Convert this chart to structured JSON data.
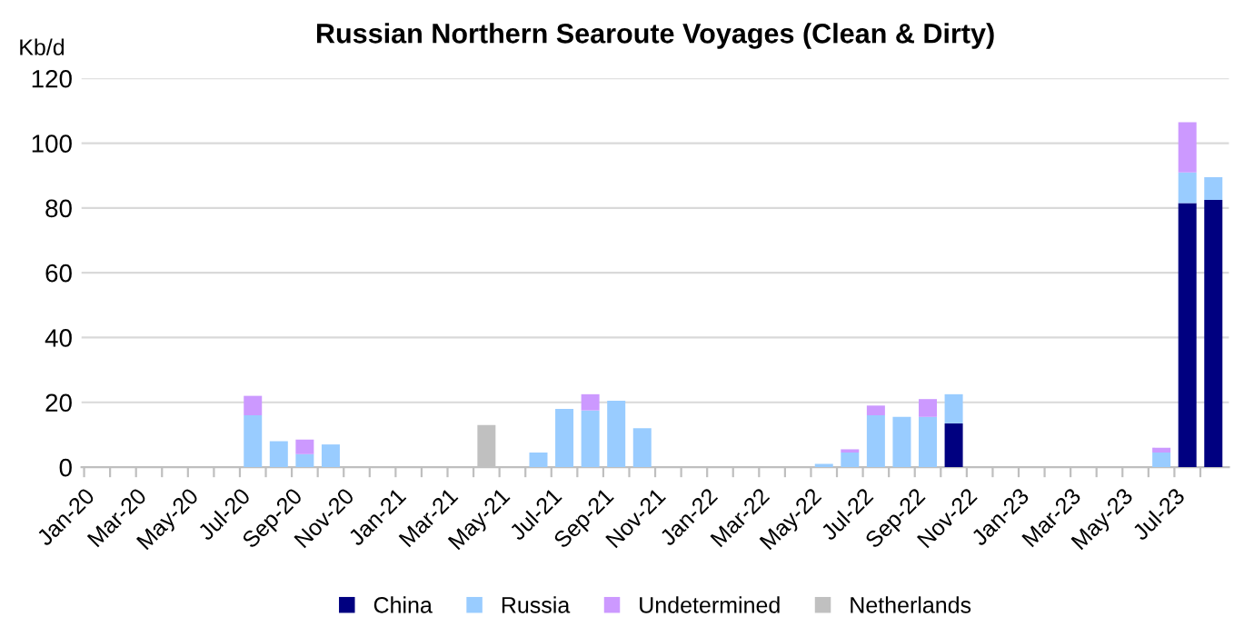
{
  "chart_data": {
    "type": "bar",
    "title": "Russian Northern Searoute Voyages (Clean & Dirty)",
    "ylabel": "Kb/d",
    "stacked": true,
    "categories": [
      "Jan-20",
      null,
      "Mar-20",
      null,
      "May-20",
      null,
      "Jul-20",
      null,
      "Sep-20",
      null,
      "Nov-20",
      null,
      "Jan-21",
      null,
      "Mar-21",
      null,
      "May-21",
      null,
      "Jul-21",
      null,
      "Sep-21",
      null,
      "Nov-21",
      null,
      "Jan-22",
      null,
      "Mar-22",
      null,
      "May-22",
      null,
      "Jul-22",
      null,
      "Sep-22",
      null,
      "Nov-22",
      null,
      "Jan-23",
      null,
      "Mar-23",
      null,
      "May-23",
      null,
      "Jul-23",
      null
    ],
    "series": [
      {
        "name": "China",
        "color": "#000080",
        "values": [
          0,
          0,
          0,
          0,
          0,
          0,
          0,
          0,
          0,
          0,
          0,
          0,
          0,
          0,
          0,
          0,
          0,
          0,
          0,
          0,
          0,
          0,
          0,
          0,
          0,
          0,
          0,
          0,
          0,
          0,
          0,
          0,
          0,
          13.5,
          0,
          0,
          0,
          0,
          0,
          0,
          0,
          0,
          81.5,
          82.5
        ]
      },
      {
        "name": "Russia",
        "color": "#99ccff",
        "values": [
          0,
          0,
          0,
          0,
          0,
          0,
          16,
          8,
          4,
          7,
          0,
          0,
          0,
          0,
          0,
          0,
          0,
          4.5,
          18,
          17.5,
          20.5,
          12,
          0,
          0,
          0,
          0,
          0,
          0,
          1,
          4.5,
          16,
          15.5,
          15.5,
          9,
          0,
          0,
          0,
          0,
          0,
          0,
          0,
          4.5,
          9.5,
          7
        ]
      },
      {
        "name": "Undetermined",
        "color": "#cc99ff",
        "values": [
          0,
          0,
          0,
          0,
          0,
          0,
          6,
          0,
          4.5,
          0,
          0,
          0,
          0,
          0,
          0,
          0,
          0,
          0,
          0,
          5,
          0,
          0,
          0,
          0,
          0,
          0,
          0,
          0,
          0,
          1,
          3,
          0,
          5.5,
          0,
          0,
          0,
          0,
          0,
          0,
          0,
          0,
          1.5,
          15.5,
          0
        ]
      },
      {
        "name": "Netherlands",
        "color": "#c0c0c0",
        "values": [
          0,
          0,
          0,
          0,
          0,
          0,
          0,
          0,
          0,
          0,
          0,
          0,
          0,
          0,
          0,
          13,
          0,
          0,
          0,
          0,
          0,
          0,
          0,
          0,
          0,
          0,
          0,
          0,
          0,
          0,
          0,
          0,
          0,
          0,
          0,
          0,
          0,
          0,
          0,
          0,
          0,
          0,
          0,
          0
        ]
      }
    ],
    "ylim": [
      0,
      120
    ],
    "yticks": [
      0,
      20,
      40,
      60,
      80,
      100,
      120
    ],
    "grid": "y",
    "legend": "bottom"
  }
}
